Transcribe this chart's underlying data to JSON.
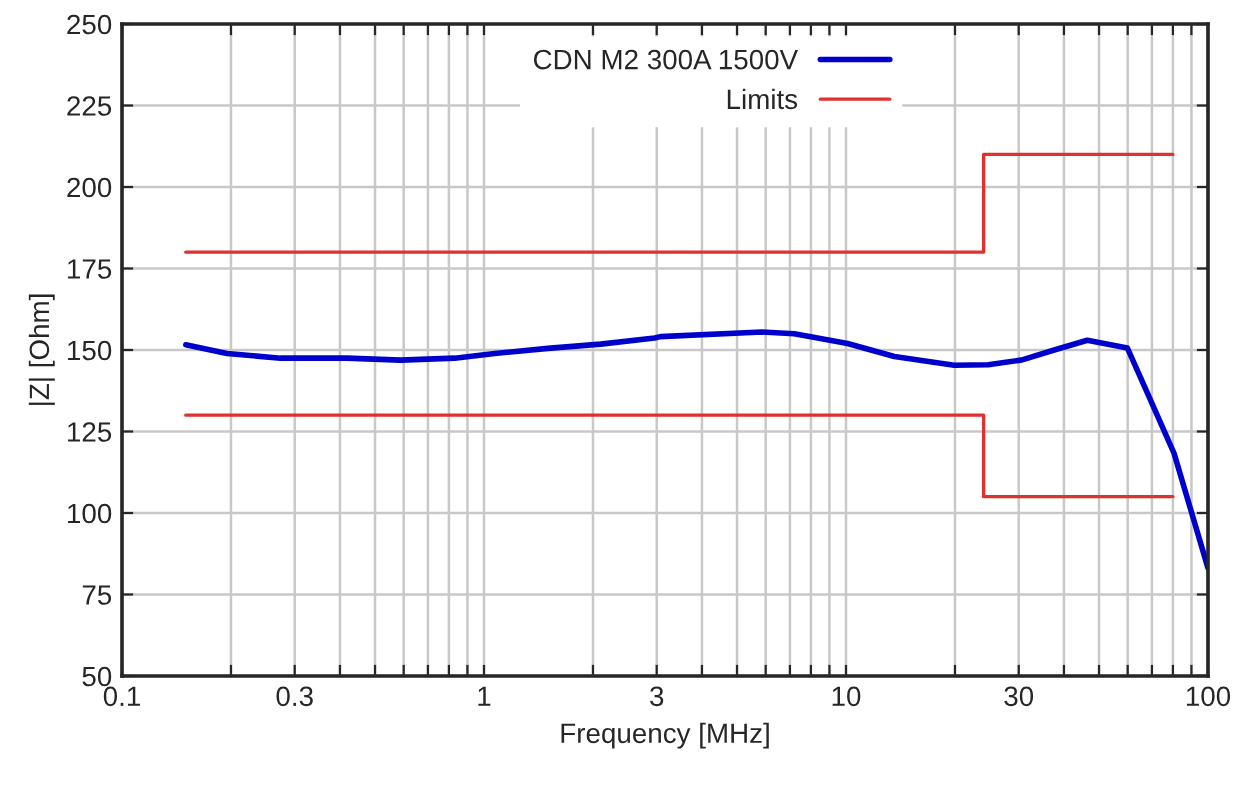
{
  "chart_data": {
    "type": "line",
    "xlabel": "Frequency [MHz]",
    "ylabel": "|Z| [Ohm]",
    "log": "x",
    "xlim": [
      0.1,
      100
    ],
    "ylim": [
      50,
      250
    ],
    "xticks": [
      0.1,
      {
        "value": 0.2,
        "label": null
      },
      0.3,
      {
        "value": 0.4,
        "label": null
      },
      {
        "value": 0.5,
        "label": null
      },
      {
        "value": 0.6,
        "label": null
      },
      {
        "value": 0.7,
        "label": null
      },
      {
        "value": 0.8,
        "label": null
      },
      {
        "value": 0.9,
        "label": null
      },
      1,
      {
        "value": 2,
        "label": null
      },
      3,
      {
        "value": 4,
        "label": null
      },
      {
        "value": 5,
        "label": null
      },
      {
        "value": 6,
        "label": null
      },
      {
        "value": 7,
        "label": null
      },
      {
        "value": 8,
        "label": null
      },
      {
        "value": 9,
        "label": null
      },
      10,
      {
        "value": 20,
        "label": null
      },
      30,
      {
        "value": 40,
        "label": null
      },
      {
        "value": 50,
        "label": null
      },
      {
        "value": 60,
        "label": null
      },
      {
        "value": 70,
        "label": null
      },
      {
        "value": 80,
        "label": null
      },
      {
        "value": 90,
        "label": null
      },
      100
    ],
    "yticks": [
      50,
      75,
      100,
      125,
      150,
      175,
      200,
      225,
      250
    ],
    "grid": true,
    "legend": "top right",
    "marker": "none",
    "series": [
      {
        "name": "CDN M2 300A 1500V",
        "color": "#0000cc",
        "x": [
          0.15,
          0.195,
          0.274,
          0.418,
          0.588,
          0.83,
          1.07,
          1.5,
          2.1,
          2.96,
          3.07,
          5.85,
          7.2,
          10.1,
          13.6,
          19.9,
          24.7,
          30.5,
          37.6,
          46.4,
          59.9,
          66.8,
          80.6,
          100
        ],
        "values": [
          151.6,
          148.9,
          147.5,
          147.5,
          146.9,
          147.5,
          148.9,
          150.5,
          151.8,
          153.7,
          154.1,
          155.5,
          155,
          152,
          148,
          145.3,
          145.5,
          146.9,
          150,
          153,
          150.6,
          138.8,
          118.3,
          83.1
        ]
      },
      {
        "name": "Limits",
        "color": "#e03030",
        "x": [
          0.15,
          24,
          24,
          80
        ],
        "values": [
          180,
          180,
          210,
          210
        ]
      },
      {
        "color": "#e03030",
        "x": [
          0.15,
          24,
          24,
          80
        ],
        "values": [
          130,
          130,
          105,
          105
        ]
      }
    ]
  }
}
